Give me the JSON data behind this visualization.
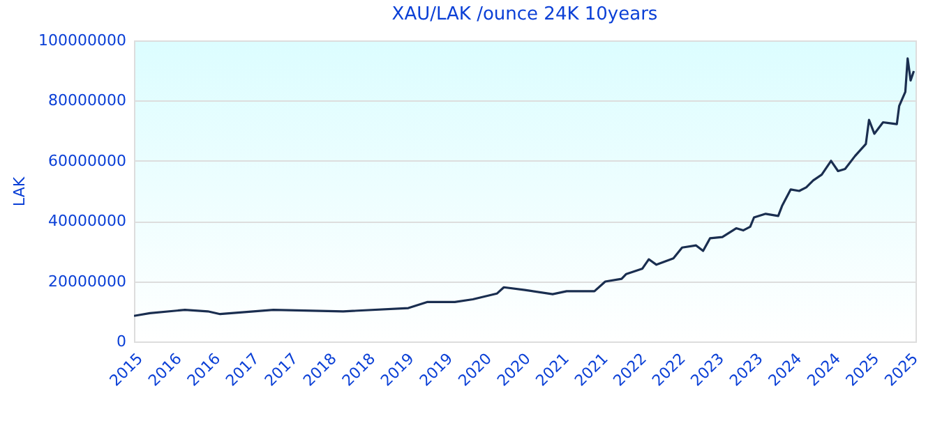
{
  "chart_data": {
    "type": "line",
    "title": "XAU/LAK /ounce 24K 10years",
    "ylabel": "LAK",
    "x": [
      "2015-10-01",
      "2015-12-15",
      "2016-05-28",
      "2016-09-13",
      "2016-11-10",
      "2017-07-19",
      "2018-06-13",
      "2019-04-16",
      "2019-07-13",
      "2019-11-21",
      "2020-02-14",
      "2020-06-06",
      "2020-07-09",
      "2020-10-16",
      "2021-02-24",
      "2021-05-01",
      "2021-09-09",
      "2021-10-30",
      "2022-01-15",
      "2022-02-06",
      "2022-04-23",
      "2022-05-23",
      "2022-06-28",
      "2022-09-16",
      "2022-10-27",
      "2023-01-01",
      "2023-02-03",
      "2023-03-08",
      "2023-05-05",
      "2023-07-09",
      "2023-08-11",
      "2023-09-13",
      "2023-10-01",
      "2023-11-25",
      "2024-01-23",
      "2024-02-10",
      "2024-03-22",
      "2024-05-01",
      "2024-06-03",
      "2024-07-06",
      "2024-08-15",
      "2024-09-28",
      "2024-10-31",
      "2024-12-03",
      "2025-01-19",
      "2025-03-11",
      "2025-03-26",
      "2025-04-20",
      "2025-05-31",
      "2025-08-04",
      "2025-08-15",
      "2025-09-13",
      "2025-09-24",
      "2025-10-08",
      "2025-10-23"
    ],
    "series": [
      {
        "color": "#1a2e50",
        "values": [
          8500000,
          9400000,
          10500000,
          10000000,
          9100000,
          10500000,
          10000000,
          11100000,
          13100000,
          13100000,
          14000000,
          15900000,
          18000000,
          17100000,
          15700000,
          16700000,
          16700000,
          19900000,
          20800000,
          22400000,
          24200000,
          27300000,
          25500000,
          27600000,
          31200000,
          31900000,
          30100000,
          34300000,
          34700000,
          37600000,
          36900000,
          38100000,
          41200000,
          42400000,
          41700000,
          45000000,
          50500000,
          50000000,
          51200000,
          53500000,
          55400000,
          60000000,
          56600000,
          57300000,
          61600000,
          65600000,
          73600000,
          69000000,
          72800000,
          72200000,
          78200000,
          82900000,
          94000000,
          86700000,
          89800000
        ]
      }
    ],
    "xlim": [
      "2015-10-01",
      "2025-10-31"
    ],
    "xticks": [
      {
        "value": "2015-10-01",
        "label": "2015"
      },
      {
        "value": "2016-04-01",
        "label": "2016"
      },
      {
        "value": "2016-10-01",
        "label": "2016"
      },
      {
        "value": "2017-04-01",
        "label": "2017"
      },
      {
        "value": "2017-10-01",
        "label": "2017"
      },
      {
        "value": "2018-04-01",
        "label": "2018"
      },
      {
        "value": "2018-10-01",
        "label": "2018"
      },
      {
        "value": "2019-04-01",
        "label": "2019"
      },
      {
        "value": "2019-10-01",
        "label": "2019"
      },
      {
        "value": "2020-04-01",
        "label": "2020"
      },
      {
        "value": "2020-10-01",
        "label": "2020"
      },
      {
        "value": "2021-04-01",
        "label": "2021"
      },
      {
        "value": "2021-10-01",
        "label": "2021"
      },
      {
        "value": "2022-04-01",
        "label": "2022"
      },
      {
        "value": "2022-10-01",
        "label": "2022"
      },
      {
        "value": "2023-04-01",
        "label": "2023"
      },
      {
        "value": "2023-10-01",
        "label": "2023"
      },
      {
        "value": "2024-04-01",
        "label": "2024"
      },
      {
        "value": "2024-10-01",
        "label": "2024"
      },
      {
        "value": "2025-04-01",
        "label": "2025"
      },
      {
        "value": "2025-10-01",
        "label": "2025"
      }
    ],
    "ylim": [
      0,
      100000000
    ],
    "yticks": [
      0,
      20000000,
      40000000,
      60000000,
      80000000,
      100000000
    ],
    "grid": "y",
    "marker": "none",
    "line_style": "solid",
    "legend": false
  }
}
